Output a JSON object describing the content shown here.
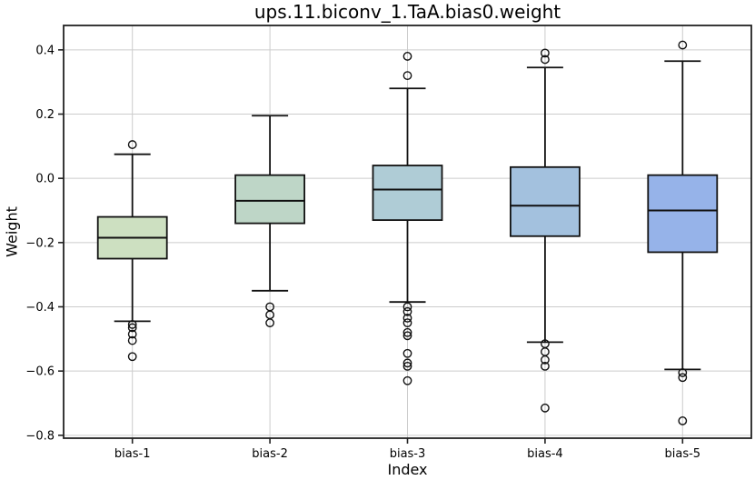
{
  "chart_data": {
    "type": "boxplot",
    "title": "ups.11.biconv_1.TaA.bias0.weight",
    "xlabel": "Index",
    "ylabel": "Weight",
    "categories": [
      "bias-1",
      "bias-2",
      "bias-3",
      "bias-4",
      "bias-5"
    ],
    "ylim": [
      -0.809,
      0.476
    ],
    "ytick_values": [
      0.4,
      0.2,
      0.0,
      -0.2,
      -0.4,
      -0.6,
      -0.8
    ],
    "ytick_labels": [
      "0.4",
      "0.2",
      "0.0",
      "−0.2",
      "−0.4",
      "−0.6",
      "−0.8"
    ],
    "grid": true,
    "grid_color": "#cccccc",
    "line_color": "#111111",
    "spine_color": "#222222",
    "background_color": "#ffffff",
    "legend": "none",
    "boxes": [
      {
        "label": "bias-1",
        "color": "#cde0c1",
        "whisker_high": 0.075,
        "q3": -0.12,
        "median": -0.185,
        "q1": -0.25,
        "whisker_low": -0.445,
        "outliers": [
          0.105,
          -0.455,
          -0.465,
          -0.485,
          -0.505,
          -0.555
        ]
      },
      {
        "label": "bias-2",
        "color": "#bed6c7",
        "whisker_high": 0.195,
        "q3": 0.01,
        "median": -0.07,
        "q1": -0.14,
        "whisker_low": -0.35,
        "outliers": [
          -0.4,
          -0.425,
          -0.45
        ]
      },
      {
        "label": "bias-3",
        "color": "#afccd6",
        "whisker_high": 0.28,
        "q3": 0.04,
        "median": -0.035,
        "q1": -0.13,
        "whisker_low": -0.385,
        "outliers": [
          0.38,
          0.32,
          -0.4,
          -0.415,
          -0.435,
          -0.45,
          -0.48,
          -0.49,
          -0.545,
          -0.575,
          -0.585,
          -0.63
        ]
      },
      {
        "label": "bias-4",
        "color": "#a3c1de",
        "whisker_high": 0.345,
        "q3": 0.035,
        "median": -0.085,
        "q1": -0.18,
        "whisker_low": -0.51,
        "outliers": [
          0.39,
          0.37,
          -0.515,
          -0.54,
          -0.565,
          -0.585,
          -0.715
        ]
      },
      {
        "label": "bias-5",
        "color": "#96b3e9",
        "whisker_high": 0.365,
        "q3": 0.01,
        "median": -0.1,
        "q1": -0.23,
        "whisker_low": -0.595,
        "outliers": [
          0.415,
          -0.605,
          -0.62,
          -0.755
        ]
      }
    ]
  }
}
